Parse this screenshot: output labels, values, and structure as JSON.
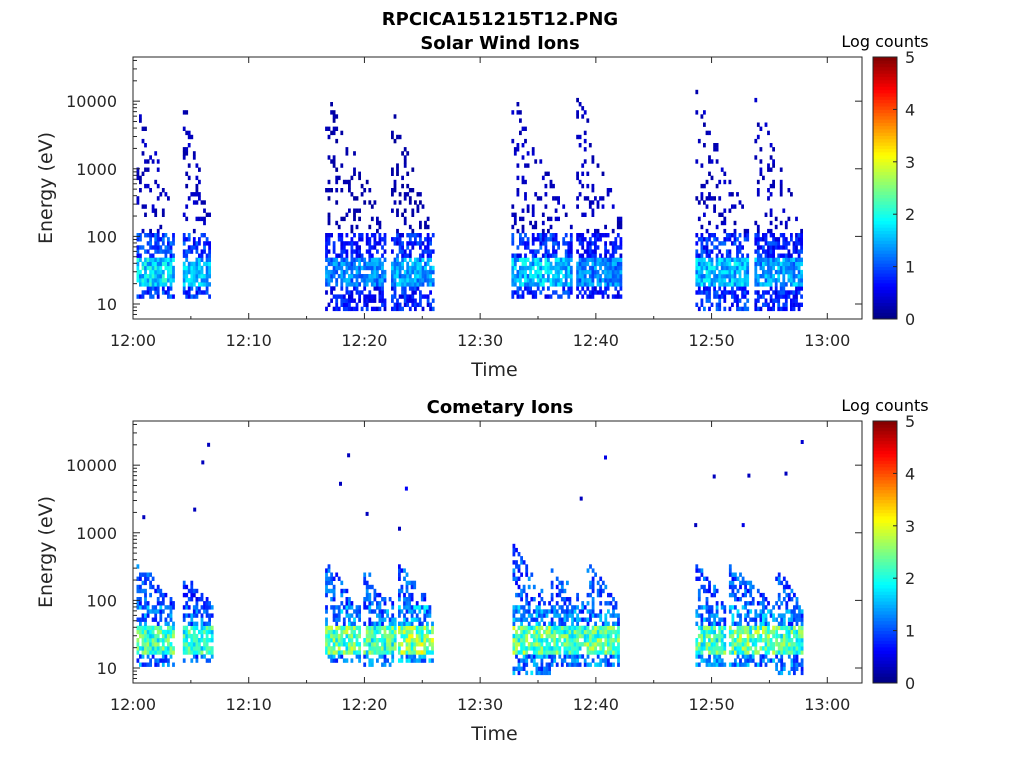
{
  "figure": {
    "title": "RPCICA151215T12.PNG"
  },
  "chart_data": [
    {
      "type": "heatmap",
      "title": "Solar Wind Ions",
      "xlabel": "Time",
      "ylabel": "Energy (eV)",
      "x_ticks": [
        "12:00",
        "12:10",
        "12:20",
        "12:30",
        "12:40",
        "12:50",
        "13:00"
      ],
      "x_range_min": [
        0,
        63
      ],
      "y_ticks": [
        "10",
        "100",
        "1000",
        "10000"
      ],
      "y_tick_values": [
        10,
        100,
        1000,
        10000
      ],
      "y_range": [
        6,
        45000
      ],
      "y_scale": "log",
      "colorbar": {
        "label": "Log counts",
        "ticks": [
          "0",
          "1",
          "2",
          "3",
          "4",
          "5"
        ],
        "range": [
          0,
          5
        ],
        "colormap": "jet"
      },
      "clusters": [
        {
          "t_start_min": 0.3,
          "t_end_min": 3.6,
          "e_min": 12,
          "e_max": 16000,
          "peak_energy": 30,
          "peak_level": 2.2,
          "tail_level": 0.3
        },
        {
          "t_start_min": 4.3,
          "t_end_min": 6.7,
          "e_min": 12,
          "e_max": 12000,
          "peak_energy": 30,
          "peak_level": 2.0,
          "tail_level": 0.3
        },
        {
          "t_start_min": 16.6,
          "t_end_min": 21.8,
          "e_min": 8,
          "e_max": 15000,
          "peak_energy": 30,
          "peak_level": 1.6,
          "tail_level": 0.2
        },
        {
          "t_start_min": 22.3,
          "t_end_min": 25.9,
          "e_min": 8,
          "e_max": 10000,
          "peak_energy": 30,
          "peak_level": 1.8,
          "tail_level": 0.2
        },
        {
          "t_start_min": 32.7,
          "t_end_min": 37.8,
          "e_min": 12,
          "e_max": 14000,
          "peak_energy": 30,
          "peak_level": 2.0,
          "tail_level": 0.3
        },
        {
          "t_start_min": 38.3,
          "t_end_min": 42.2,
          "e_min": 12,
          "e_max": 16000,
          "peak_energy": 30,
          "peak_level": 1.6,
          "tail_level": 0.3
        },
        {
          "t_start_min": 48.6,
          "t_end_min": 53.2,
          "e_min": 8,
          "e_max": 14000,
          "peak_energy": 30,
          "peak_level": 2.0,
          "tail_level": 0.3
        },
        {
          "t_start_min": 53.7,
          "t_end_min": 57.8,
          "e_min": 8,
          "e_max": 12000,
          "peak_energy": 30,
          "peak_level": 1.8,
          "tail_level": 0.3
        }
      ]
    },
    {
      "type": "heatmap",
      "title": "Cometary Ions",
      "xlabel": "Time",
      "ylabel": "Energy (eV)",
      "x_ticks": [
        "12:00",
        "12:10",
        "12:20",
        "12:30",
        "12:40",
        "12:50",
        "13:00"
      ],
      "x_range_min": [
        0,
        63
      ],
      "y_ticks": [
        "10",
        "100",
        "1000",
        "10000"
      ],
      "y_tick_values": [
        10,
        100,
        1000,
        10000
      ],
      "y_range": [
        6,
        45000
      ],
      "y_scale": "log",
      "colorbar": {
        "label": "Log counts",
        "ticks": [
          "0",
          "1",
          "2",
          "3",
          "4",
          "5"
        ],
        "range": [
          0,
          5
        ],
        "colormap": "jet"
      },
      "clusters": [
        {
          "t_start_min": 0.3,
          "t_end_min": 3.6,
          "e_min": 10,
          "e_max": 400,
          "peak_energy": 25,
          "peak_level": 2.8,
          "tail_level": 1.0
        },
        {
          "t_start_min": 4.3,
          "t_end_min": 6.8,
          "e_min": 12,
          "e_max": 250,
          "peak_energy": 25,
          "peak_level": 2.6,
          "tail_level": 0.8
        },
        {
          "t_start_min": 16.6,
          "t_end_min": 19.6,
          "e_min": 12,
          "e_max": 400,
          "peak_energy": 25,
          "peak_level": 3.0,
          "tail_level": 1.0
        },
        {
          "t_start_min": 19.9,
          "t_end_min": 22.6,
          "e_min": 10,
          "e_max": 300,
          "peak_energy": 25,
          "peak_level": 2.8,
          "tail_level": 1.0
        },
        {
          "t_start_min": 22.9,
          "t_end_min": 25.9,
          "e_min": 12,
          "e_max": 350,
          "peak_energy": 25,
          "peak_level": 3.2,
          "tail_level": 1.0
        },
        {
          "t_start_min": 32.8,
          "t_end_min": 35.9,
          "e_min": 8,
          "e_max": 650,
          "peak_energy": 25,
          "peak_level": 3.0,
          "tail_level": 1.0
        },
        {
          "t_start_min": 36.1,
          "t_end_min": 39.0,
          "e_min": 10,
          "e_max": 350,
          "peak_energy": 25,
          "peak_level": 2.8,
          "tail_level": 1.0
        },
        {
          "t_start_min": 39.2,
          "t_end_min": 42.0,
          "e_min": 10,
          "e_max": 400,
          "peak_energy": 25,
          "peak_level": 3.0,
          "tail_level": 1.0
        },
        {
          "t_start_min": 48.6,
          "t_end_min": 51.2,
          "e_min": 10,
          "e_max": 400,
          "peak_energy": 25,
          "peak_level": 2.8,
          "tail_level": 1.0
        },
        {
          "t_start_min": 51.5,
          "t_end_min": 55.3,
          "e_min": 10,
          "e_max": 350,
          "peak_energy": 25,
          "peak_level": 3.0,
          "tail_level": 1.0
        },
        {
          "t_start_min": 55.5,
          "t_end_min": 57.7,
          "e_min": 8,
          "e_max": 350,
          "peak_energy": 25,
          "peak_level": 2.8,
          "tail_level": 1.0
        }
      ],
      "sparse_points": [
        {
          "t_min": 0.8,
          "e": 1700,
          "level": 0.3
        },
        {
          "t_min": 5.2,
          "e": 2200,
          "level": 0.3
        },
        {
          "t_min": 5.9,
          "e": 11000,
          "level": 0.3
        },
        {
          "t_min": 6.4,
          "e": 20000,
          "level": 0.3
        },
        {
          "t_min": 17.8,
          "e": 5300,
          "level": 0.3
        },
        {
          "t_min": 18.5,
          "e": 14000,
          "level": 0.3
        },
        {
          "t_min": 20.1,
          "e": 1900,
          "level": 0.3
        },
        {
          "t_min": 22.9,
          "e": 1150,
          "level": 0.3
        },
        {
          "t_min": 23.5,
          "e": 4500,
          "level": 0.6
        },
        {
          "t_min": 38.6,
          "e": 3200,
          "level": 0.3
        },
        {
          "t_min": 40.7,
          "e": 13000,
          "level": 0.5
        },
        {
          "t_min": 48.5,
          "e": 1300,
          "level": 0.3
        },
        {
          "t_min": 50.1,
          "e": 6800,
          "level": 0.3
        },
        {
          "t_min": 52.6,
          "e": 1300,
          "level": 0.5
        },
        {
          "t_min": 53.1,
          "e": 7000,
          "level": 0.3
        },
        {
          "t_min": 56.3,
          "e": 7500,
          "level": 0.3
        },
        {
          "t_min": 57.7,
          "e": 22000,
          "level": 0.4
        }
      ]
    }
  ]
}
